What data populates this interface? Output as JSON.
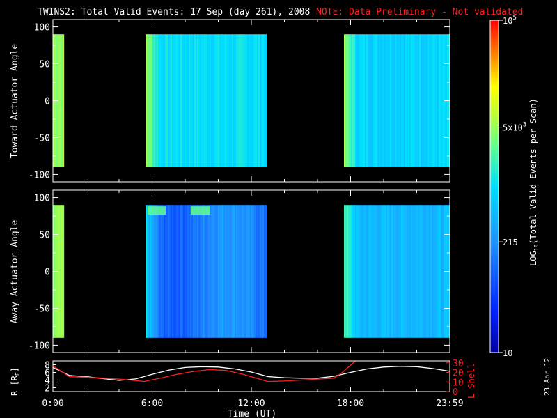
{
  "title": {
    "main": "TWINS2: Total Valid Events: 17 Sep (day 261), 2008",
    "note": "NOTE: Data Preliminary - Not validated"
  },
  "chart_data": [
    {
      "type": "heatmap",
      "panel": "top",
      "ylabel": "Toward Actuator Angle",
      "ylim": [
        -110,
        110
      ],
      "yticks": [
        "100",
        "50",
        "0",
        "-50",
        "-100"
      ],
      "y_range_of_data": [
        -90,
        90
      ],
      "xlim_hours": [
        0,
        24
      ],
      "segments": [
        {
          "start": 0.0,
          "end": 0.6,
          "level": 0.68
        },
        {
          "start": 5.6,
          "end": 12.9,
          "level": 0.5
        },
        {
          "start": 17.6,
          "end": 24.0,
          "level": 0.48
        }
      ]
    },
    {
      "type": "heatmap",
      "panel": "middle",
      "ylabel": "Away Actuator Angle",
      "ylim": [
        -110,
        110
      ],
      "yticks": [
        "100",
        "50",
        "0",
        "-50",
        "-100"
      ],
      "y_range_of_data": [
        -90,
        90
      ],
      "xlim_hours": [
        0,
        24
      ],
      "segments": [
        {
          "start": 0.0,
          "end": 0.6,
          "level": 0.66
        },
        {
          "start": 5.6,
          "end": 12.9,
          "level": 0.3
        },
        {
          "start": 17.6,
          "end": 24.0,
          "level": 0.42
        }
      ]
    },
    {
      "type": "line",
      "panel": "bottom",
      "ylabel": "R [R",
      "ylabel_sub": "E",
      "ylabel_end": "]",
      "ylim": [
        1,
        9
      ],
      "yticks": [
        "8",
        "6",
        "4",
        "2"
      ],
      "y2label": "L Shell",
      "y2lim": [
        0,
        32
      ],
      "y2ticks": [
        "30",
        "20",
        "10",
        "0"
      ],
      "xlabel": "Time (UT)",
      "xticks": [
        "0:00",
        "6:00",
        "12:00",
        "18:00",
        "23:59"
      ],
      "series": [
        {
          "name": "R",
          "color": "#ffffff",
          "x": [
            0,
            1,
            2,
            3,
            4,
            5,
            6,
            7,
            8,
            9,
            10,
            11,
            12,
            13,
            14,
            15,
            16,
            17,
            18,
            19,
            20,
            21,
            22,
            23,
            24
          ],
          "y": [
            7.3,
            5.2,
            4.9,
            4.4,
            3.9,
            4.3,
            5.5,
            6.6,
            7.3,
            7.5,
            7.4,
            6.9,
            6.1,
            4.9,
            4.6,
            4.5,
            4.5,
            5.0,
            6.0,
            6.9,
            7.4,
            7.6,
            7.5,
            7.0,
            6.3
          ]
        },
        {
          "name": "L Shell",
          "color": "#ff2020",
          "x": [
            0,
            1,
            2,
            3,
            4,
            5,
            5.5,
            6.5,
            7.5,
            8.5,
            9.5,
            10.5,
            11.5,
            12.3,
            13,
            14,
            15,
            16,
            17,
            17.5,
            18.3
          ],
          "y": [
            27,
            15.5,
            15,
            14,
            13,
            11.5,
            10.5,
            14,
            18,
            21,
            23,
            22,
            18,
            14,
            10.5,
            11,
            12,
            13,
            14,
            20,
            33
          ]
        }
      ]
    }
  ],
  "colorbar": {
    "label_pre": "LOG",
    "label_sub": "10",
    "label_post": "(Total Valid Events per Scan)",
    "ticks": [
      {
        "label": "10",
        "frac": 0.0
      },
      {
        "label": "215",
        "frac": 0.333
      },
      {
        "label_base": "5x10",
        "label_exp": "3",
        "frac": 0.678
      },
      {
        "label_base": "10",
        "label_exp": "5",
        "frac": 1.0
      }
    ]
  },
  "footer_date": "23 Apr 12"
}
